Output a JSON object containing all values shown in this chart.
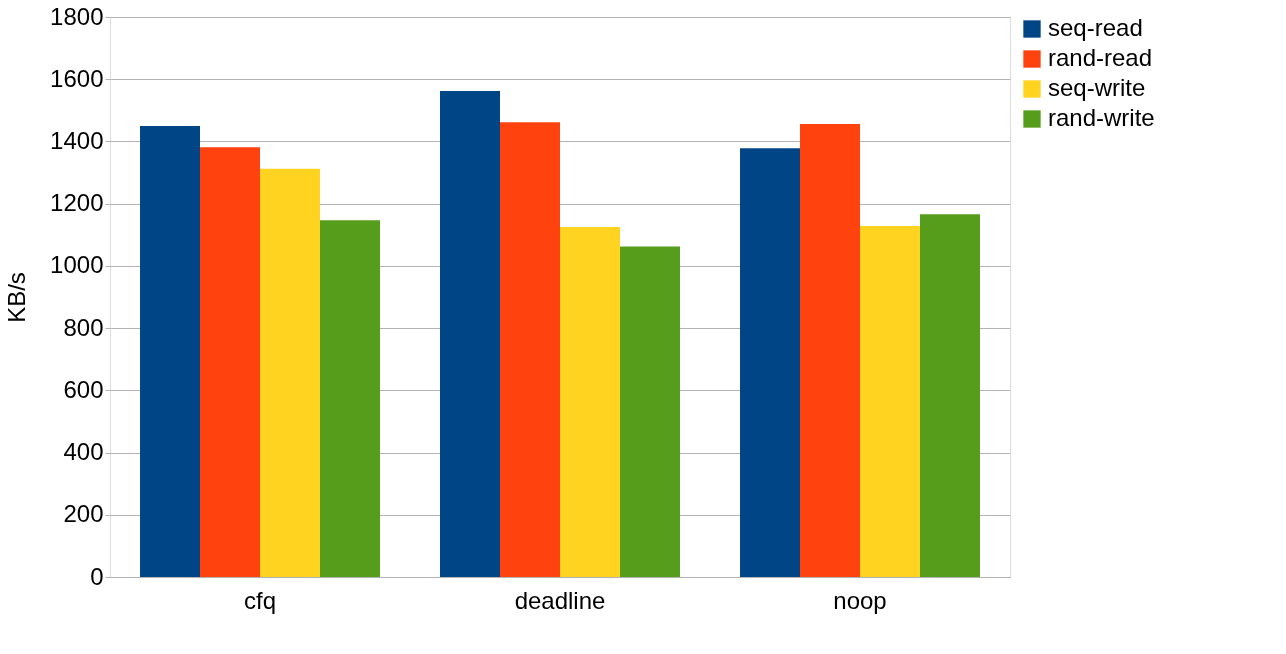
{
  "chart_data": {
    "type": "bar",
    "ylabel": "KB/s",
    "categories": [
      "cfq",
      "deadline",
      "noop"
    ],
    "series": [
      {
        "name": "seq-read",
        "color": "#004586",
        "values": [
          1450,
          1562,
          1378
        ]
      },
      {
        "name": "rand-read",
        "color": "#ff420e",
        "values": [
          1381,
          1462,
          1456
        ]
      },
      {
        "name": "seq-write",
        "color": "#ffd320",
        "values": [
          1312,
          1125,
          1128
        ]
      },
      {
        "name": "rand-write",
        "color": "#579d1c",
        "values": [
          1147,
          1062,
          1166
        ]
      }
    ],
    "ylim": [
      0,
      1800
    ],
    "yticks": [
      0,
      200,
      400,
      600,
      800,
      1000,
      1200,
      1400,
      1600,
      1800
    ],
    "grid": "y",
    "legend": "right"
  }
}
